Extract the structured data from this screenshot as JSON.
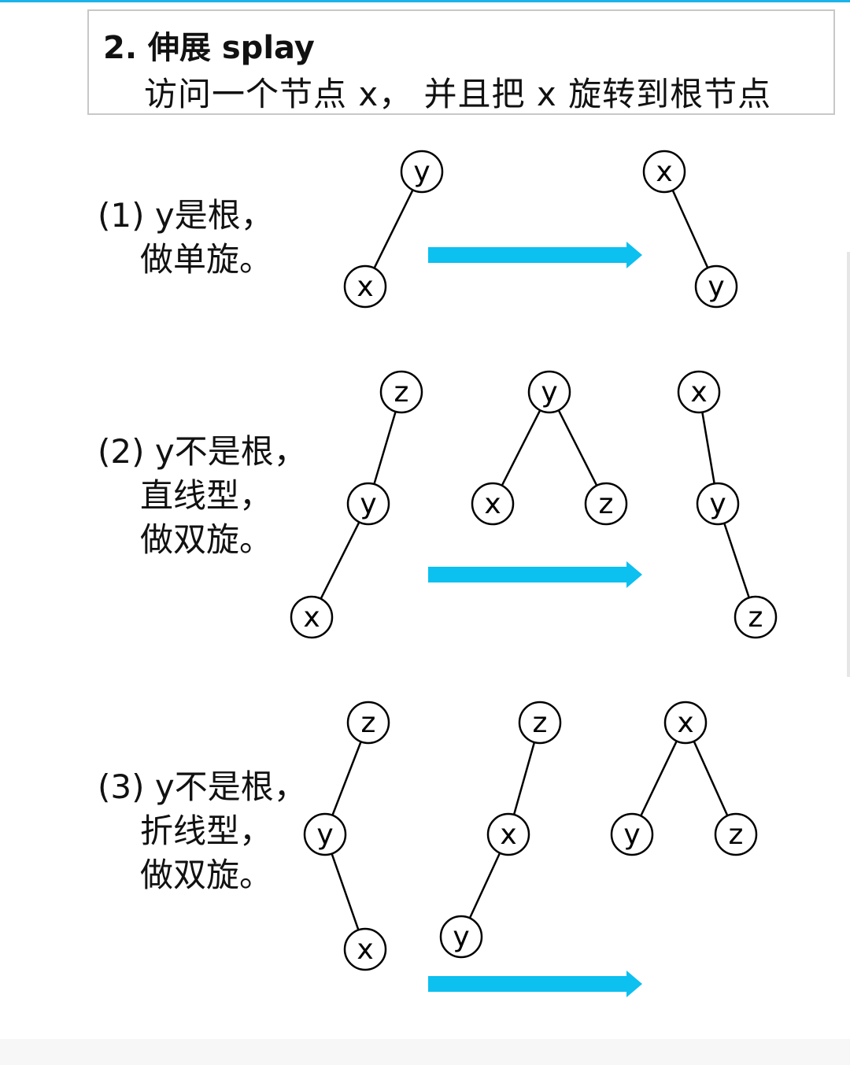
{
  "header": {
    "title": "2. 伸展 splay",
    "subtitle": "访问一个节点 x， 并且把 x 旋转到根节点"
  },
  "cases": [
    {
      "line1": "(1) y是根，",
      "line2": "做单旋。",
      "line3": ""
    },
    {
      "line1": "(2) y不是根，",
      "line2": "直线型，",
      "line3": "做双旋。"
    },
    {
      "line1": "(3) y不是根，",
      "line2": "折线型，",
      "line3": "做双旋。"
    }
  ],
  "node_labels": {
    "x": "x",
    "y": "y",
    "z": "z"
  },
  "colors": {
    "arrow": "#0cc0f0",
    "accent_line": "#1cb4e8"
  }
}
